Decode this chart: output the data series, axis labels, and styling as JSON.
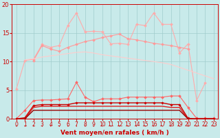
{
  "x": [
    0,
    1,
    2,
    3,
    4,
    5,
    6,
    7,
    8,
    9,
    10,
    11,
    12,
    13,
    14,
    15,
    16,
    17,
    18,
    19,
    20,
    21,
    22,
    23
  ],
  "series": [
    {
      "name": "line1_light_pink_markers",
      "color": "#ffaaaa",
      "linewidth": 0.8,
      "marker": "D",
      "markersize": 2.0,
      "y": [
        5.2,
        10.2,
        10.4,
        13.0,
        12.5,
        12.8,
        16.3,
        18.5,
        15.2,
        15.3,
        15.2,
        13.1,
        13.2,
        13.0,
        16.5,
        16.3,
        18.5,
        16.5,
        16.5,
        11.5,
        13.1,
        3.2,
        6.3,
        null
      ]
    },
    {
      "name": "line2_medium_pink",
      "color": "#ff9999",
      "linewidth": 0.8,
      "marker": "D",
      "markersize": 2.0,
      "y": [
        null,
        null,
        10.2,
        12.8,
        12.2,
        11.8,
        12.5,
        13.0,
        13.5,
        13.8,
        14.2,
        14.5,
        14.8,
        14.0,
        13.8,
        13.5,
        13.2,
        13.0,
        12.8,
        12.5,
        12.2,
        null,
        null,
        null
      ]
    },
    {
      "name": "line3_diagonal",
      "color": "#ffcccc",
      "linewidth": 0.8,
      "marker": null,
      "markersize": 0,
      "y": [
        null,
        10.3,
        10.5,
        10.8,
        11.0,
        11.2,
        11.4,
        11.6,
        11.7,
        11.5,
        11.2,
        11.0,
        10.8,
        10.6,
        10.4,
        10.2,
        10.0,
        9.8,
        9.5,
        9.0,
        8.5,
        8.0,
        7.5,
        7.0
      ]
    },
    {
      "name": "line4_pink_markers",
      "color": "#ff6666",
      "linewidth": 0.8,
      "marker": "D",
      "markersize": 2.0,
      "y": [
        0.0,
        1.5,
        3.2,
        3.3,
        3.3,
        3.4,
        3.5,
        6.4,
        3.8,
        3.0,
        3.5,
        3.5,
        3.5,
        3.8,
        3.8,
        3.8,
        3.8,
        3.8,
        4.0,
        4.0,
        2.0,
        0.1,
        0.1,
        0.1
      ]
    },
    {
      "name": "line5_dark_red_markers",
      "color": "#cc0000",
      "linewidth": 1.0,
      "marker": "D",
      "markersize": 1.8,
      "y": [
        0.0,
        0.2,
        2.3,
        2.5,
        2.5,
        2.5,
        2.5,
        2.8,
        2.8,
        2.8,
        2.8,
        2.8,
        2.8,
        2.8,
        2.8,
        2.8,
        2.8,
        2.8,
        2.5,
        2.5,
        0.1,
        0.0,
        0.0,
        0.0
      ]
    },
    {
      "name": "line6_red_flat1",
      "color": "#dd2222",
      "linewidth": 1.0,
      "marker": null,
      "markersize": 0,
      "y": [
        0.0,
        0.0,
        2.0,
        2.2,
        2.2,
        2.2,
        2.2,
        2.2,
        2.2,
        2.2,
        2.2,
        2.2,
        2.2,
        2.2,
        2.2,
        2.2,
        2.2,
        2.2,
        2.0,
        2.0,
        0.0,
        0.0,
        0.0,
        0.0
      ]
    },
    {
      "name": "line7_dark_red_flat",
      "color": "#990000",
      "linewidth": 1.0,
      "marker": null,
      "markersize": 0,
      "y": [
        0.0,
        0.0,
        1.5,
        1.5,
        1.5,
        1.5,
        1.5,
        1.5,
        1.5,
        1.5,
        1.5,
        1.5,
        1.5,
        1.5,
        1.5,
        1.5,
        1.5,
        1.5,
        1.5,
        1.5,
        0.0,
        0.0,
        0.0,
        0.0
      ]
    }
  ],
  "xlabel": "Vent moyen/en rafales ( km/h )",
  "xlim_left": -0.5,
  "xlim_right": 23.5,
  "ylim": [
    0,
    20
  ],
  "yticks": [
    0,
    5,
    10,
    15,
    20
  ],
  "xticks": [
    0,
    1,
    2,
    3,
    4,
    5,
    6,
    7,
    8,
    9,
    10,
    11,
    12,
    13,
    14,
    15,
    16,
    17,
    18,
    19,
    20,
    21,
    22,
    23
  ],
  "xtick_labels": [
    "0",
    "1",
    "2",
    "3",
    "4",
    "5",
    "6",
    "7",
    "8",
    "9",
    "10",
    "11",
    "12",
    "13",
    "14",
    "15",
    "16",
    "17",
    "18",
    "19",
    "20",
    "21",
    "22",
    "23"
  ],
  "bg_color": "#c8eaea",
  "grid_color": "#a0cccc",
  "line_color": "#cc0000",
  "xlabel_fontsize": 6.5,
  "tick_fontsize": 5.5
}
